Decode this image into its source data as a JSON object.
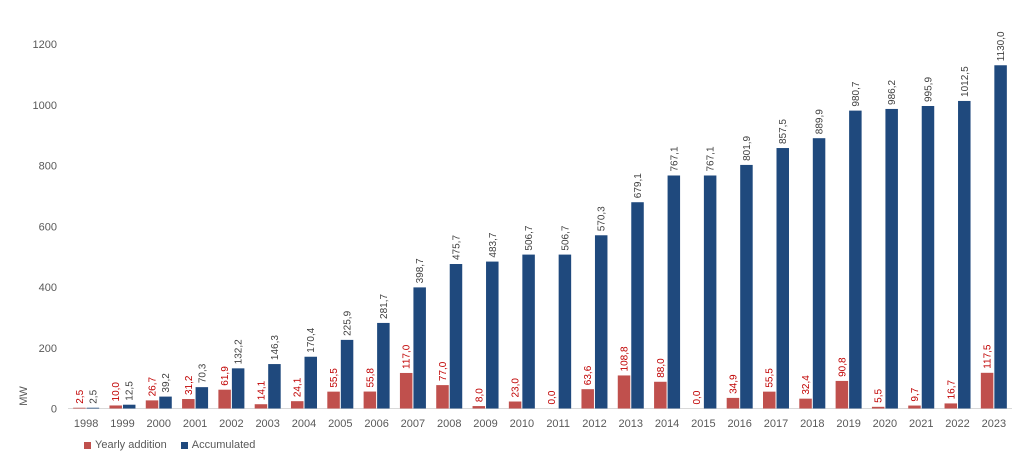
{
  "chart_data": {
    "type": "bar",
    "title": "",
    "xlabel": "",
    "ylabel": "MW",
    "ylim": [
      0,
      1200
    ],
    "yticks": [
      "0",
      "200",
      "400",
      "600",
      "800",
      "1000",
      "1200"
    ],
    "grid": false,
    "legend_position": "bottom-left",
    "categories": [
      "1998",
      "1999",
      "2000",
      "2001",
      "2002",
      "2003",
      "2004",
      "2005",
      "2006",
      "2007",
      "2008",
      "2009",
      "2010",
      "2011",
      "2012",
      "2013",
      "2014",
      "2015",
      "2016",
      "2017",
      "2018",
      "2019",
      "2020",
      "2021",
      "2022",
      "2023"
    ],
    "series": [
      {
        "name": "Yearly addition",
        "color": "#c0504d",
        "label_color": "#c00000",
        "values": [
          2.5,
          10.0,
          26.7,
          31.2,
          61.9,
          14.1,
          24.1,
          55.5,
          55.8,
          117.0,
          77.0,
          8.0,
          23.0,
          0.0,
          63.6,
          108.8,
          88.0,
          0.0,
          34.9,
          55.5,
          32.4,
          90.8,
          5.5,
          9.7,
          16.7,
          117.5
        ],
        "labels": [
          "2,5",
          "10,0",
          "26,7",
          "31,2",
          "61,9",
          "14,1",
          "24,1",
          "55,5",
          "55,8",
          "117,0",
          "77,0",
          "8,0",
          "23,0",
          "0,0",
          "63,6",
          "108,8",
          "88,0",
          "0,0",
          "34,9",
          "55,5",
          "32,4",
          "90,8",
          "5,5",
          "9,7",
          "16,7",
          "117,5"
        ]
      },
      {
        "name": "Accumulated",
        "color": "#1f497d",
        "label_color": "#404040",
        "values": [
          2.5,
          12.5,
          39.2,
          70.3,
          132.2,
          146.3,
          170.4,
          225.9,
          281.7,
          398.7,
          475.7,
          483.7,
          506.7,
          506.7,
          570.3,
          679.1,
          767.1,
          767.1,
          801.9,
          857.5,
          889.9,
          980.7,
          986.2,
          995.9,
          1012.5,
          1130.0
        ],
        "labels": [
          "2,5",
          "12,5",
          "39,2",
          "70,3",
          "132,2",
          "146,3",
          "170,4",
          "225,9",
          "281,7",
          "398,7",
          "475,7",
          "483,7",
          "506,7",
          "506,7",
          "570,3",
          "679,1",
          "767,1",
          "767,1",
          "801,9",
          "857,5",
          "889,9",
          "980,7",
          "986,2",
          "995,9",
          "1012,5",
          "1130,0"
        ]
      }
    ]
  }
}
